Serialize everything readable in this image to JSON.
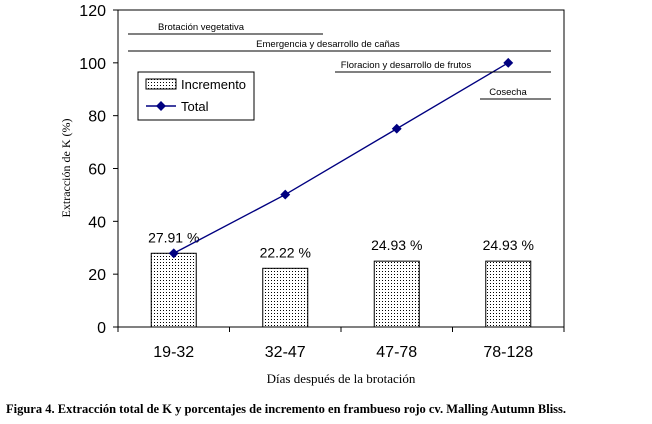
{
  "chart_data": {
    "type": "bar+line",
    "caption": "Figura 4. Extracción total de K y porcentajes de incremento en frambueso rojo  cv. Malling Autumn Bliss.",
    "xlabel": "Días después de la brotación",
    "ylabel": "Extracción de K   (%)",
    "ylim": [
      0,
      120
    ],
    "yticks": [
      "0",
      "20",
      "40",
      "60",
      "80",
      "100",
      "120"
    ],
    "categories": [
      "19-32",
      "32-47",
      "47-78",
      "78-128"
    ],
    "series": [
      {
        "name": "Incremento",
        "kind": "bar",
        "values": [
          27.91,
          22.22,
          24.93,
          24.93
        ],
        "labels": [
          "27.91 %",
          "22.22 %",
          "24.93 %",
          "24.93 %"
        ]
      },
      {
        "name": "Total",
        "kind": "line",
        "values": [
          27.91,
          50.13,
          75.06,
          100
        ],
        "color": "#000080"
      }
    ],
    "phases": [
      {
        "label": "Brotación vegetativa"
      },
      {
        "label": "Emergencia y desarrollo de cañas"
      },
      {
        "label": "Floracion y desarrollo de frutos"
      },
      {
        "label": "Cosecha"
      }
    ],
    "legend": {
      "position": "top-left",
      "entries": [
        "Incremento",
        "Total"
      ]
    }
  }
}
